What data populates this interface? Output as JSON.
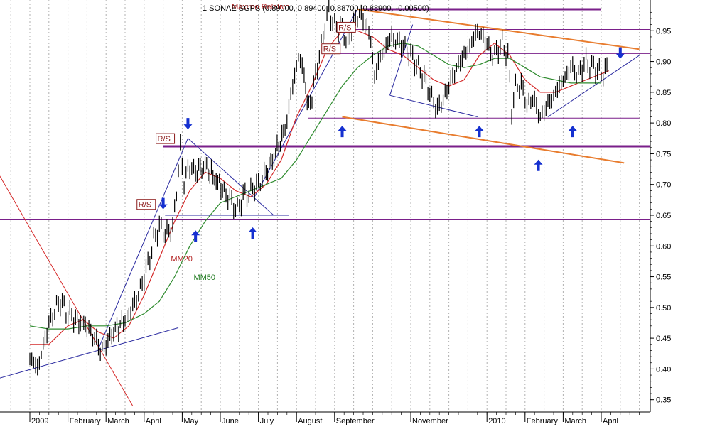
{
  "chart_data": {
    "type": "candlestick",
    "title": "1 SONAE SGPS (0.89000, 0.89400, 0.88700, 0.88900, -0.00500)",
    "ylim": [
      0.33,
      1.0
    ],
    "y_ticks": [
      0.35,
      0.4,
      0.45,
      0.5,
      0.55,
      0.6,
      0.65,
      0.7,
      0.75,
      0.8,
      0.85,
      0.9,
      0.95
    ],
    "y_tick_labels": [
      "0.35",
      "0.40",
      "0.45",
      "0.50",
      "0.55",
      "0.60",
      "0.65",
      "0.70",
      "0.75",
      "0.80",
      "0.85",
      "0.90",
      "0.95"
    ],
    "x_labels": [
      {
        "label": "2009",
        "month": 0
      },
      {
        "label": "February",
        "month": 1
      },
      {
        "label": "March",
        "month": 2
      },
      {
        "label": "April",
        "month": 3
      },
      {
        "label": "May",
        "month": 4
      },
      {
        "label": "June",
        "month": 5
      },
      {
        "label": "July",
        "month": 6
      },
      {
        "label": "August",
        "month": 7
      },
      {
        "label": "September",
        "month": 8
      },
      {
        "label": "November",
        "month": 10
      },
      {
        "label": "2010",
        "month": 12
      },
      {
        "label": "February",
        "month": 13
      },
      {
        "label": "March",
        "month": 14
      },
      {
        "label": "April",
        "month": 15
      }
    ],
    "grid": true,
    "price_path": [
      [
        0.0,
        0.42
      ],
      [
        0.2,
        0.4
      ],
      [
        0.4,
        0.45
      ],
      [
        0.6,
        0.49
      ],
      [
        0.8,
        0.51
      ],
      [
        1.0,
        0.49
      ],
      [
        1.2,
        0.48
      ],
      [
        1.5,
        0.47
      ],
      [
        1.7,
        0.45
      ],
      [
        1.85,
        0.43
      ],
      [
        2.0,
        0.44
      ],
      [
        2.2,
        0.46
      ],
      [
        2.5,
        0.48
      ],
      [
        2.7,
        0.5
      ],
      [
        2.9,
        0.53
      ],
      [
        3.1,
        0.57
      ],
      [
        3.25,
        0.61
      ],
      [
        3.4,
        0.63
      ],
      [
        3.6,
        0.62
      ],
      [
        3.75,
        0.63
      ],
      [
        3.85,
        0.69
      ],
      [
        3.95,
        0.76
      ],
      [
        4.05,
        0.7
      ],
      [
        4.15,
        0.73
      ],
      [
        4.35,
        0.72
      ],
      [
        4.6,
        0.73
      ],
      [
        4.85,
        0.71
      ],
      [
        5.1,
        0.69
      ],
      [
        5.3,
        0.67
      ],
      [
        5.45,
        0.66
      ],
      [
        5.6,
        0.68
      ],
      [
        5.8,
        0.69
      ],
      [
        6.0,
        0.7
      ],
      [
        6.2,
        0.72
      ],
      [
        6.45,
        0.75
      ],
      [
        6.7,
        0.79
      ],
      [
        6.9,
        0.86
      ],
      [
        7.05,
        0.91
      ],
      [
        7.2,
        0.88
      ],
      [
        7.32,
        0.82
      ],
      [
        7.45,
        0.86
      ],
      [
        7.6,
        0.91
      ],
      [
        7.75,
        0.96
      ],
      [
        7.85,
        0.98
      ],
      [
        8.0,
        0.96
      ],
      [
        8.2,
        0.95
      ],
      [
        8.35,
        0.93
      ],
      [
        8.5,
        0.96
      ],
      [
        8.65,
        0.98
      ],
      [
        8.8,
        0.96
      ],
      [
        8.95,
        0.94
      ],
      [
        9.05,
        0.87
      ],
      [
        9.15,
        0.9
      ],
      [
        9.3,
        0.92
      ],
      [
        9.5,
        0.94
      ],
      [
        9.7,
        0.93
      ],
      [
        9.9,
        0.92
      ],
      [
        10.1,
        0.9
      ],
      [
        10.3,
        0.88
      ],
      [
        10.5,
        0.85
      ],
      [
        10.7,
        0.82
      ],
      [
        10.85,
        0.84
      ],
      [
        11.0,
        0.86
      ],
      [
        11.2,
        0.89
      ],
      [
        11.4,
        0.91
      ],
      [
        11.6,
        0.93
      ],
      [
        11.75,
        0.95
      ],
      [
        11.9,
        0.94
      ],
      [
        12.05,
        0.92
      ],
      [
        12.2,
        0.91
      ],
      [
        12.4,
        0.93
      ],
      [
        12.55,
        0.91
      ],
      [
        12.65,
        0.82
      ],
      [
        12.75,
        0.86
      ],
      [
        12.9,
        0.86
      ],
      [
        13.05,
        0.83
      ],
      [
        13.2,
        0.84
      ],
      [
        13.4,
        0.81
      ],
      [
        13.6,
        0.83
      ],
      [
        13.8,
        0.85
      ],
      [
        14.0,
        0.87
      ],
      [
        14.2,
        0.89
      ],
      [
        14.4,
        0.88
      ],
      [
        14.6,
        0.9
      ],
      [
        14.8,
        0.89
      ],
      [
        15.0,
        0.88
      ],
      [
        15.2,
        0.89
      ]
    ],
    "ma20_path": [
      [
        0.0,
        0.44
      ],
      [
        0.5,
        0.44
      ],
      [
        1.0,
        0.47
      ],
      [
        1.4,
        0.48
      ],
      [
        1.8,
        0.46
      ],
      [
        2.2,
        0.45
      ],
      [
        2.6,
        0.47
      ],
      [
        3.0,
        0.52
      ],
      [
        3.4,
        0.58
      ],
      [
        3.8,
        0.64
      ],
      [
        4.2,
        0.69
      ],
      [
        4.6,
        0.72
      ],
      [
        5.0,
        0.71
      ],
      [
        5.4,
        0.69
      ],
      [
        5.8,
        0.68
      ],
      [
        6.2,
        0.7
      ],
      [
        6.6,
        0.74
      ],
      [
        7.0,
        0.81
      ],
      [
        7.4,
        0.86
      ],
      [
        7.8,
        0.92
      ],
      [
        8.2,
        0.95
      ],
      [
        8.6,
        0.95
      ],
      [
        9.0,
        0.94
      ],
      [
        9.4,
        0.92
      ],
      [
        9.8,
        0.91
      ],
      [
        10.2,
        0.89
      ],
      [
        10.6,
        0.87
      ],
      [
        11.0,
        0.86
      ],
      [
        11.4,
        0.87
      ],
      [
        11.8,
        0.91
      ],
      [
        12.2,
        0.93
      ],
      [
        12.6,
        0.91
      ],
      [
        13.0,
        0.87
      ],
      [
        13.4,
        0.85
      ],
      [
        13.8,
        0.85
      ],
      [
        14.2,
        0.86
      ],
      [
        14.6,
        0.87
      ],
      [
        15.0,
        0.88
      ],
      [
        15.2,
        0.885
      ]
    ],
    "ma50_path": [
      [
        0.0,
        0.47
      ],
      [
        0.5,
        0.465
      ],
      [
        1.0,
        0.465
      ],
      [
        1.5,
        0.47
      ],
      [
        2.0,
        0.47
      ],
      [
        2.5,
        0.475
      ],
      [
        3.0,
        0.49
      ],
      [
        3.4,
        0.51
      ],
      [
        3.8,
        0.55
      ],
      [
        4.2,
        0.6
      ],
      [
        4.6,
        0.64
      ],
      [
        5.0,
        0.67
      ],
      [
        5.4,
        0.68
      ],
      [
        5.8,
        0.69
      ],
      [
        6.2,
        0.7
      ],
      [
        6.6,
        0.71
      ],
      [
        7.0,
        0.74
      ],
      [
        7.4,
        0.78
      ],
      [
        7.8,
        0.82
      ],
      [
        8.2,
        0.86
      ],
      [
        8.6,
        0.89
      ],
      [
        9.0,
        0.91
      ],
      [
        9.4,
        0.925
      ],
      [
        9.8,
        0.93
      ],
      [
        10.2,
        0.925
      ],
      [
        10.6,
        0.91
      ],
      [
        11.0,
        0.895
      ],
      [
        11.4,
        0.89
      ],
      [
        11.8,
        0.895
      ],
      [
        12.2,
        0.905
      ],
      [
        12.6,
        0.905
      ],
      [
        13.0,
        0.89
      ],
      [
        13.4,
        0.875
      ],
      [
        13.8,
        0.87
      ],
      [
        14.2,
        0.865
      ],
      [
        14.6,
        0.865
      ],
      [
        15.0,
        0.865
      ]
    ],
    "annotations": [
      {
        "text": "Máximo Relativo",
        "m": 5.3,
        "v": 0.985,
        "color": "#b22222"
      },
      {
        "text": "R/S",
        "m": 8.1,
        "v": 0.951,
        "color": "#8b1a1a",
        "box": true
      },
      {
        "text": "R/S",
        "m": 7.7,
        "v": 0.916,
        "color": "#8b1a1a",
        "box": true
      },
      {
        "text": "R/S",
        "m": 3.35,
        "v": 0.77,
        "color": "#8b1a1a",
        "box": true
      },
      {
        "text": "R/S",
        "m": 2.85,
        "v": 0.663,
        "color": "#8b1a1a",
        "box": true
      },
      {
        "text": "MM20",
        "m": 3.7,
        "v": 0.575,
        "color": "#b22222"
      },
      {
        "text": "MM50",
        "m": 4.3,
        "v": 0.545,
        "color": "#1f7a1f"
      }
    ],
    "support_resistance_levels": [
      0.643,
      0.762,
      0.808,
      0.913,
      0.952,
      0.985
    ]
  },
  "colors": {
    "price": "#000000",
    "ma20": "#d42a2a",
    "ma50": "#2e8b2e",
    "channel": "#e87c2e",
    "trend": "#2a2aa0",
    "level": "#7a1f8a",
    "arrow": "#1530d0",
    "grid": "#b0b0b0"
  }
}
